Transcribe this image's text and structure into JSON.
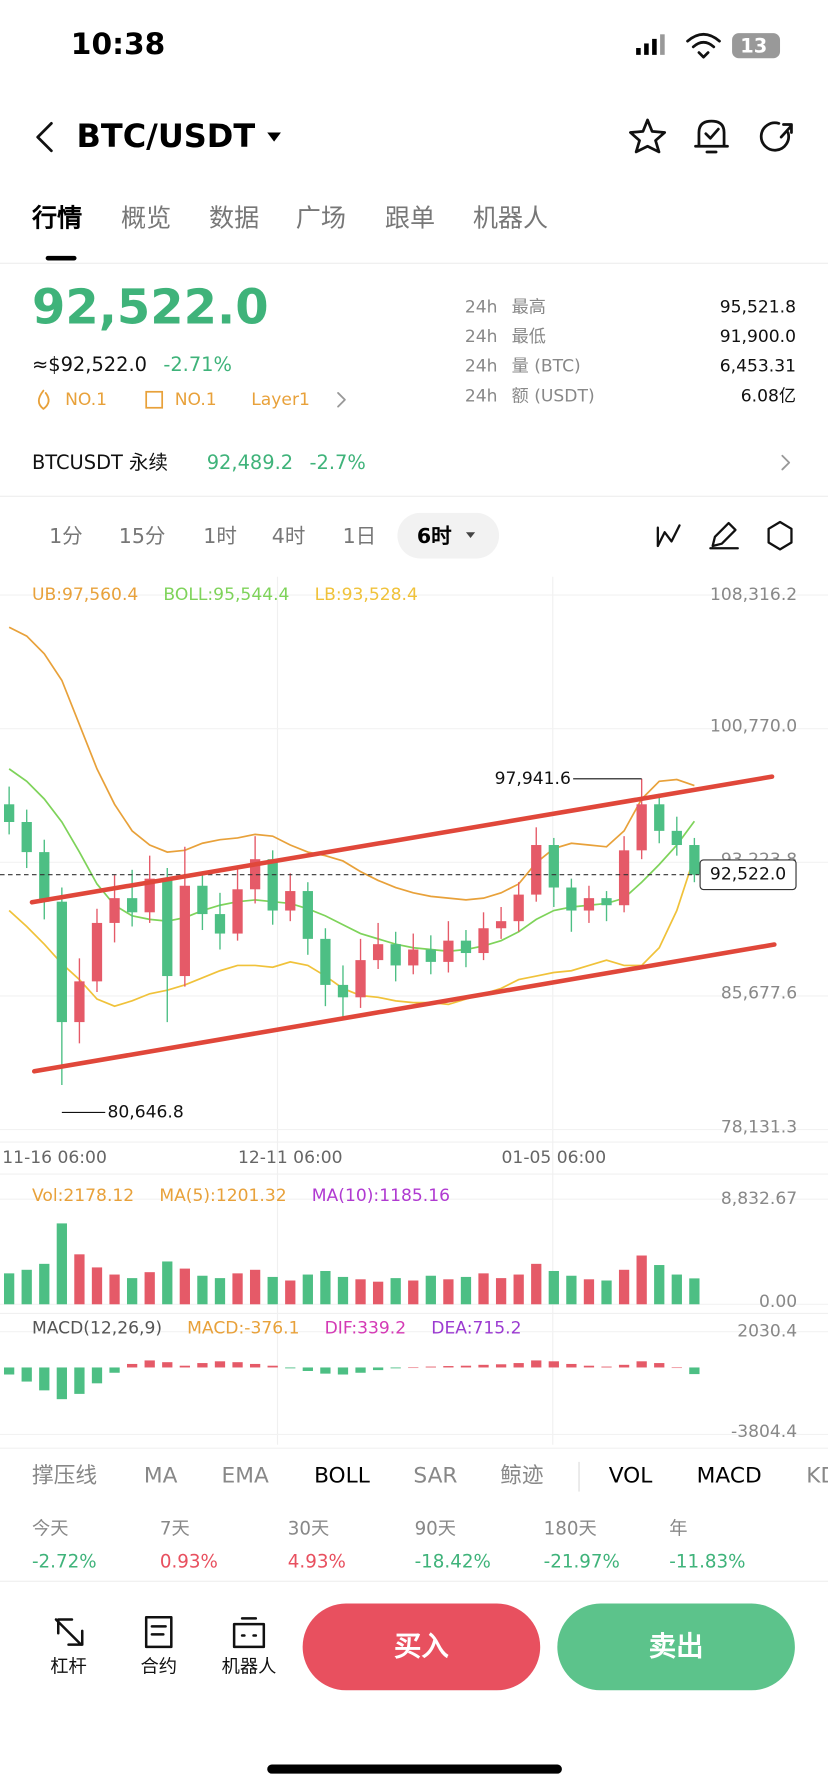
{
  "status_bar": {
    "time": "10:38",
    "battery": "13"
  },
  "header": {
    "pair": "BTC/USDT"
  },
  "tabs": [
    "行情",
    "概览",
    "数据",
    "广场",
    "跟单",
    "机器人"
  ],
  "ticker": {
    "price": "92,522.0",
    "approx": "≈$92,522.0",
    "change": "-2.71%",
    "rank1": "NO.1",
    "rank2": "NO.1",
    "tag": "Layer1",
    "stats": [
      {
        "period": "24h",
        "label": "最高",
        "value": "95,521.8"
      },
      {
        "period": "24h",
        "label": "最低",
        "value": "91,900.0"
      },
      {
        "period": "24h",
        "label": "量 (BTC)",
        "value": "6,453.31"
      },
      {
        "period": "24h",
        "label": "额 (USDT)",
        "value": "6.08亿"
      }
    ]
  },
  "perpetual": {
    "name": "BTCUSDT 永续",
    "price": "92,489.2",
    "change": "-2.7%"
  },
  "intervals": [
    "1分",
    "15分",
    "1时",
    "4时",
    "1日",
    "6时"
  ],
  "chart_data": [
    {
      "type": "candlestick",
      "categories": [
        "11-16 06:00",
        null,
        null,
        null,
        null,
        null,
        null,
        null,
        null,
        null,
        null,
        null,
        null,
        null,
        null,
        null,
        "12-11 06:00",
        null,
        null,
        null,
        null,
        null,
        null,
        null,
        null,
        null,
        null,
        null,
        null,
        null,
        null,
        "01-05 06:00",
        null,
        null,
        null,
        null,
        null,
        null,
        null,
        null
      ],
      "open": [
        96500,
        95500,
        93800,
        91000,
        84200,
        86500,
        89800,
        91200,
        90400,
        92300,
        86800,
        91900,
        90300,
        89200,
        91700,
        93400,
        90500,
        91600,
        88900,
        86300,
        85600,
        87700,
        88600,
        87400,
        88300,
        87600,
        88800,
        88100,
        89500,
        89900,
        91400,
        94200,
        91800,
        90500,
        91200,
        90800,
        93900,
        96500,
        95000,
        94200
      ],
      "high": [
        97500,
        96200,
        94500,
        91800,
        87800,
        90600,
        92500,
        92800,
        93600,
        92900,
        94100,
        92700,
        91500,
        92900,
        94700,
        93900,
        92600,
        92100,
        89500,
        87400,
        88900,
        89800,
        89300,
        89200,
        89100,
        89900,
        89400,
        90400,
        90700,
        92100,
        95200,
        94600,
        92300,
        91900,
        91600,
        94700,
        97941.6,
        97100,
        95800,
        94600
      ],
      "low": [
        94800,
        92900,
        90000,
        80646.8,
        83000,
        85900,
        88700,
        89600,
        89800,
        84200,
        86200,
        89400,
        88300,
        88800,
        90900,
        89700,
        89900,
        88000,
        85100,
        84300,
        85000,
        87200,
        86500,
        86900,
        86900,
        87000,
        87300,
        87700,
        88900,
        89300,
        91000,
        90700,
        89300,
        89800,
        89900,
        90400,
        93400,
        94300,
        93600,
        92100
      ],
      "close": [
        95500,
        93800,
        91000,
        84200,
        86500,
        89800,
        91200,
        90400,
        92300,
        86800,
        91900,
        90300,
        89200,
        91700,
        93400,
        90500,
        91600,
        88900,
        86300,
        85600,
        87700,
        88600,
        87400,
        88300,
        87600,
        88800,
        88100,
        89500,
        89900,
        91400,
        94200,
        91800,
        90500,
        91200,
        90800,
        93900,
        96500,
        95000,
        94200,
        92522.0
      ],
      "series": [
        {
          "name": "UB:97,560.4",
          "color": "#e8a13a",
          "values": [
            106500,
            106000,
            105000,
            103500,
            101000,
            98500,
            96500,
            95000,
            94200,
            93800,
            93900,
            94300,
            94500,
            94600,
            94800,
            94700,
            94200,
            93800,
            93600,
            93300,
            92700,
            92200,
            91800,
            91500,
            91300,
            91200,
            91100,
            91200,
            91500,
            92000,
            93200,
            94000,
            94300,
            94200,
            94100,
            95000,
            96800,
            97800,
            97900,
            97560.4
          ]
        },
        {
          "name": "BOLL:95,544.4",
          "color": "#7ed35a",
          "values": [
            98500,
            97800,
            96800,
            95500,
            93800,
            92000,
            90800,
            90200,
            90000,
            89900,
            90100,
            90500,
            90800,
            91000,
            91100,
            91000,
            90900,
            90600,
            90200,
            89700,
            89200,
            88900,
            88600,
            88400,
            88300,
            88200,
            88300,
            88500,
            88800,
            89300,
            90000,
            90500,
            90700,
            90800,
            90900,
            91200,
            92100,
            93100,
            94200,
            95544.4
          ]
        },
        {
          "name": "LB:93,528.4",
          "color": "#f0c23a",
          "values": [
            90500,
            89600,
            88600,
            87500,
            86600,
            85500,
            85100,
            85400,
            85800,
            86000,
            86300,
            86700,
            87100,
            87400,
            87400,
            87300,
            87600,
            87400,
            86800,
            86100,
            85700,
            85600,
            85400,
            85300,
            85300,
            85200,
            85500,
            85800,
            86100,
            86600,
            86800,
            87000,
            87100,
            87400,
            87700,
            87400,
            87400,
            88400,
            90500,
            93528.4
          ]
        }
      ],
      "up_color": "#e55a68",
      "down_color": "#4dbf84",
      "ylim": [
        78131.3,
        108316.2
      ],
      "yticks": [
        {
          "value": 108316.2,
          "label": "108,316.2"
        },
        {
          "value": 100770.0,
          "label": "100,770.0"
        },
        {
          "value": 93223.8,
          "label": "93,223.8"
        },
        {
          "value": 85677.6,
          "label": "85,677.6"
        },
        {
          "value": 78131.3,
          "label": "78,131.3"
        }
      ],
      "max_label": "97,941.6",
      "min_label": "80,646.8",
      "last_label": "92,522.0"
    },
    {
      "type": "bar",
      "legend": [
        {
          "text": "Vol:2178.12",
          "color": "#e8a13a"
        },
        {
          "text": "MA(5):1201.32",
          "color": "#e8a13a"
        },
        {
          "text": "MA(10):1185.16",
          "color": "#b03ad1"
        }
      ],
      "values": [
        2600,
        2900,
        3400,
        6800,
        4200,
        3100,
        2500,
        2200,
        2700,
        3600,
        3000,
        2400,
        2200,
        2600,
        2900,
        2300,
        2000,
        2500,
        2800,
        2300,
        2100,
        1900,
        2200,
        2000,
        2400,
        2100,
        2300,
        2600,
        2200,
        2500,
        3400,
        2800,
        2400,
        2100,
        2000,
        2900,
        4100,
        3300,
        2500,
        2178.12
      ],
      "ylim": [
        0,
        8832.67
      ],
      "yticks": [
        {
          "value": 8832.67,
          "label": "8,832.67"
        },
        {
          "value": 0,
          "label": "0.00"
        }
      ]
    },
    {
      "type": "bar",
      "legend": [
        {
          "text": "MACD(12,26,9)",
          "color": "#555555"
        },
        {
          "text": "MACD:-376.1",
          "color": "#e8a13a"
        },
        {
          "text": "DIF:339.2",
          "color": "#d43ab5"
        },
        {
          "text": "DEA:715.2",
          "color": "#9b3ad1"
        }
      ],
      "values": [
        -400,
        -800,
        -1300,
        -1800,
        -1500,
        -900,
        -300,
        200,
        400,
        300,
        100,
        250,
        350,
        300,
        200,
        100,
        -50,
        -200,
        -350,
        -400,
        -300,
        -150,
        -50,
        0,
        50,
        80,
        100,
        150,
        180,
        250,
        400,
        350,
        200,
        100,
        50,
        150,
        350,
        250,
        0,
        -376.1
      ],
      "ylim": [
        -3804.4,
        2030.4
      ],
      "yticks": [
        2030.4,
        -3804.4
      ]
    }
  ],
  "indicators": [
    "撑压线",
    "MA",
    "EMA",
    "BOLL",
    "SAR",
    "鲸迹",
    "VOL",
    "MACD",
    "KD"
  ],
  "performance": [
    {
      "period": "今天",
      "change": "-2.72%"
    },
    {
      "period": "7天",
      "change": "0.93%"
    },
    {
      "period": "30天",
      "change": "4.93%"
    },
    {
      "period": "90天",
      "change": "-18.42%"
    },
    {
      "period": "180天",
      "change": "-21.97%"
    },
    {
      "period": "年",
      "change": "-11.83%"
    }
  ],
  "actions": {
    "tools": [
      "杠杆",
      "合约",
      "机器人"
    ],
    "buy": "买入",
    "sell": "卖出"
  }
}
